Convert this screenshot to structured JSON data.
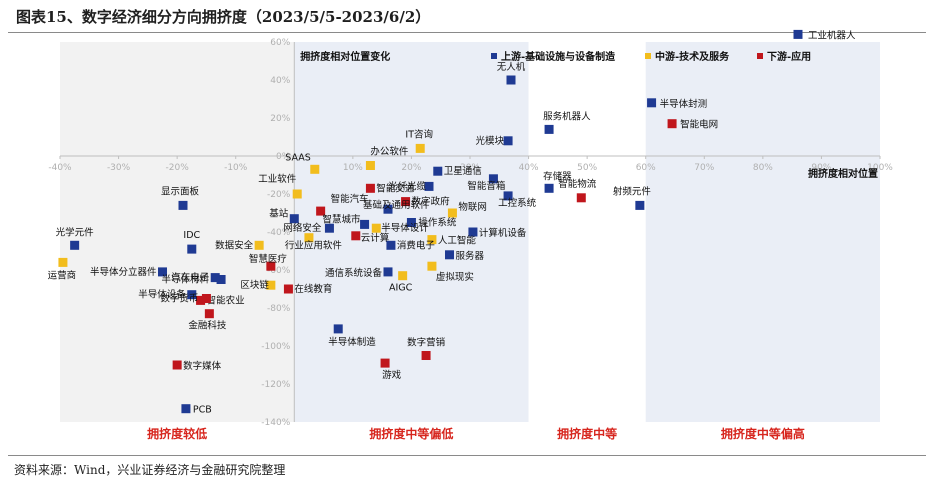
{
  "figure": {
    "title": "图表15、数字经济细分方向拥挤度（2023/5/5-2023/6/2）",
    "source": "资料来源：Wind，兴业证券经济与金融研究院整理"
  },
  "colors": {
    "upstream": "#1f3a93",
    "midstream": "#f2bd1d",
    "downstream": "#c0161c",
    "zone_low": "#f2f2f2",
    "zone_mid": "#eaeef6",
    "zone_label": "#d7261e",
    "axis_tick": "#b0b0b0"
  },
  "chart_data": {
    "type": "scatter",
    "title": "",
    "xlabel": "拥挤度相对位置",
    "ylabel": "拥挤度相对位置变化",
    "xlim": [
      -40,
      100
    ],
    "ylim": [
      -140,
      60
    ],
    "x_ticks": [
      -40,
      -30,
      -20,
      -10,
      0,
      10,
      20,
      30,
      40,
      50,
      60,
      70,
      80,
      90,
      100
    ],
    "y_ticks": [
      -140,
      -120,
      -100,
      -80,
      -60,
      -40,
      -20,
      0,
      20,
      40,
      60
    ],
    "tick_format": "percent",
    "grid": false,
    "legend": {
      "placement": "top",
      "entries": [
        {
          "key": "upstream",
          "label": "上游-基础设施与设备制造"
        },
        {
          "key": "midstream",
          "label": "中游-技术及服务"
        },
        {
          "key": "downstream",
          "label": "下游-应用"
        }
      ]
    },
    "zones": [
      {
        "label": "拥挤度较低",
        "x_range": [
          -40,
          0
        ]
      },
      {
        "label": "拥挤度中等偏低",
        "x_range": [
          0,
          40
        ]
      },
      {
        "label": "拥挤度中等",
        "x_range": [
          40,
          60
        ]
      },
      {
        "label": "拥挤度中等偏高",
        "x_range": [
          60,
          100
        ]
      }
    ],
    "points": [
      {
        "label": "工业机器人",
        "x": 86,
        "y": 64,
        "series": "upstream"
      },
      {
        "label": "无人机",
        "x": 37,
        "y": 40,
        "series": "upstream"
      },
      {
        "label": "半导体封测",
        "x": 61,
        "y": 28,
        "series": "upstream"
      },
      {
        "label": "智能电网",
        "x": 64.5,
        "y": 17,
        "series": "downstream"
      },
      {
        "label": "服务机器人",
        "x": 43.5,
        "y": 14,
        "series": "upstream"
      },
      {
        "label": "光模块",
        "x": 36.5,
        "y": 8,
        "series": "upstream"
      },
      {
        "label": "IT咨询",
        "x": 21.5,
        "y": 4,
        "series": "midstream"
      },
      {
        "label": "办公软件",
        "x": 13,
        "y": -5,
        "series": "midstream"
      },
      {
        "label": "SAAS",
        "x": 3.5,
        "y": -7,
        "series": "midstream"
      },
      {
        "label": "卫星通信",
        "x": 24.5,
        "y": -8,
        "series": "upstream"
      },
      {
        "label": "光纤光缆",
        "x": 23,
        "y": -16,
        "series": "upstream"
      },
      {
        "label": "智能交通",
        "x": 13,
        "y": -17,
        "series": "downstream"
      },
      {
        "label": "智能音箱",
        "x": 34,
        "y": -12,
        "series": "upstream"
      },
      {
        "label": "存储器",
        "x": 43.5,
        "y": -17,
        "series": "upstream"
      },
      {
        "label": "智能物流",
        "x": 49,
        "y": -22,
        "series": "downstream"
      },
      {
        "label": "射频元件",
        "x": 59,
        "y": -26,
        "series": "upstream"
      },
      {
        "label": "显示面板",
        "x": -19,
        "y": -26,
        "series": "upstream"
      },
      {
        "label": "工业软件",
        "x": 0.5,
        "y": -20,
        "series": "midstream"
      },
      {
        "label": "智能汽车",
        "x": 4.5,
        "y": -29,
        "series": "downstream"
      },
      {
        "label": "数字政府",
        "x": 19,
        "y": -24,
        "series": "downstream"
      },
      {
        "label": "基础及通用软件",
        "x": 16,
        "y": -28,
        "series": "upstream"
      },
      {
        "label": "工控系统",
        "x": 36.5,
        "y": -21,
        "series": "upstream"
      },
      {
        "label": "物联网",
        "x": 27,
        "y": -30,
        "series": "midstream"
      },
      {
        "label": "基站",
        "x": 0,
        "y": -33,
        "series": "upstream"
      },
      {
        "label": "操作系统",
        "x": 20,
        "y": -35,
        "series": "upstream"
      },
      {
        "label": "智慧城市",
        "x": 12,
        "y": -36,
        "series": "upstream"
      },
      {
        "label": "网络安全",
        "x": 6,
        "y": -38,
        "series": "upstream"
      },
      {
        "label": "半导体设计",
        "x": 14,
        "y": -38,
        "series": "midstream"
      },
      {
        "label": "云计算",
        "x": 10.5,
        "y": -42,
        "series": "downstream"
      },
      {
        "label": "计算机设备",
        "x": 30.5,
        "y": -40,
        "series": "upstream"
      },
      {
        "label": "人工智能",
        "x": 23.5,
        "y": -44,
        "series": "midstream"
      },
      {
        "label": "行业应用软件",
        "x": 2.5,
        "y": -43,
        "series": "midstream"
      },
      {
        "label": "数据安全",
        "x": -6,
        "y": -47,
        "series": "midstream"
      },
      {
        "label": "消费电子",
        "x": 16.5,
        "y": -47,
        "series": "upstream"
      },
      {
        "label": "IDC",
        "x": -17.5,
        "y": -49,
        "series": "upstream"
      },
      {
        "label": "服务器",
        "x": 26.5,
        "y": -52,
        "series": "upstream"
      },
      {
        "label": "光学元件",
        "x": -37.5,
        "y": -47,
        "series": "upstream"
      },
      {
        "label": "运营商",
        "x": -39.5,
        "y": -56,
        "series": "midstream"
      },
      {
        "label": "智慧医疗",
        "x": -4,
        "y": -58,
        "series": "downstream"
      },
      {
        "label": "半导体分立器件",
        "x": -22.5,
        "y": -61,
        "series": "upstream"
      },
      {
        "label": "汽车电子",
        "x": -13.5,
        "y": -64,
        "series": "upstream"
      },
      {
        "label": "半导体材料",
        "x": -12.5,
        "y": -65,
        "series": "upstream"
      },
      {
        "label": "通信系统设备",
        "x": 16,
        "y": -61,
        "series": "upstream"
      },
      {
        "label": "虚拟现实",
        "x": 23.5,
        "y": -58,
        "series": "midstream"
      },
      {
        "label": "AIGC",
        "x": 18.5,
        "y": -63,
        "series": "midstream"
      },
      {
        "label": "区块链",
        "x": -4,
        "y": -68,
        "series": "midstream"
      },
      {
        "label": "在线教育",
        "x": -1,
        "y": -70,
        "series": "downstream"
      },
      {
        "label": "半导体设备",
        "x": -17.5,
        "y": -73,
        "series": "upstream"
      },
      {
        "label": "智能农业",
        "x": -16,
        "y": -76,
        "series": "downstream"
      },
      {
        "label": "数字货币",
        "x": -15,
        "y": -75,
        "series": "downstream"
      },
      {
        "label": "金融科技",
        "x": -14.5,
        "y": -83,
        "series": "downstream"
      },
      {
        "label": "半导体制造",
        "x": 7.5,
        "y": -91,
        "series": "upstream"
      },
      {
        "label": "数字营销",
        "x": 22.5,
        "y": -105,
        "series": "downstream"
      },
      {
        "label": "游戏",
        "x": 15.5,
        "y": -109,
        "series": "downstream"
      },
      {
        "label": "数字媒体",
        "x": -20,
        "y": -110,
        "series": "downstream"
      },
      {
        "label": "PCB",
        "x": -18.5,
        "y": -133,
        "series": "upstream"
      }
    ]
  }
}
